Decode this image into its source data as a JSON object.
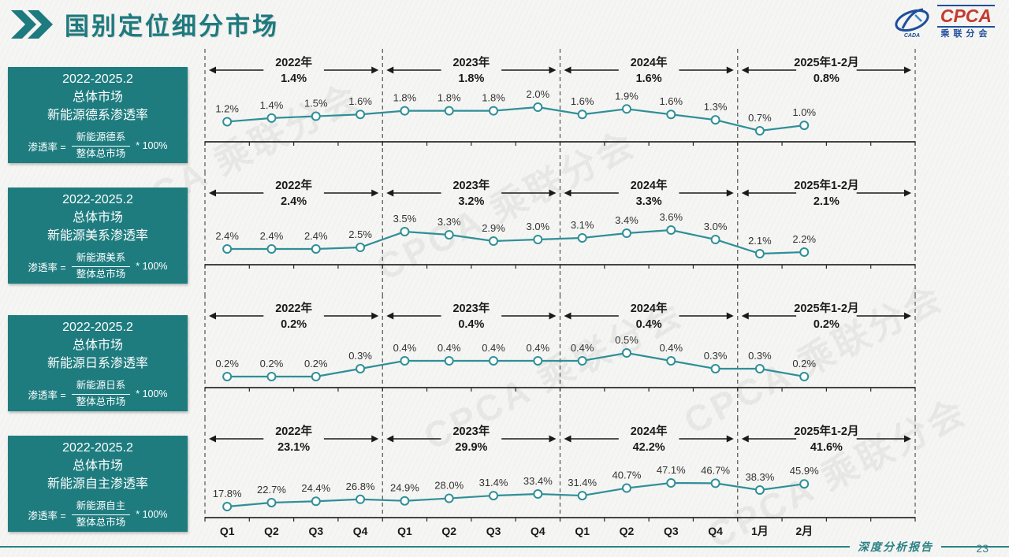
{
  "slide": {
    "title": "国别定位细分市场",
    "logo": {
      "cpca": "CPCA",
      "sub": "乘联分会",
      "cada": "CADA"
    },
    "watermark": "CPCA 乘联分会",
    "footer": {
      "report_label": "深度分析报告",
      "page_number": "23"
    }
  },
  "colors": {
    "panel_teal": "#1E7C7F",
    "title_teal": "#1D7A7E",
    "line": "#2F8F98",
    "footer_teal": "#2A8184",
    "logo_blue": "#1F4E9C",
    "logo_red": "#C43A2F",
    "ink": "#1A1A1A"
  },
  "formula": {
    "prefix": "渗透率 =",
    "multiplier": "* 100%",
    "denominator": "整体总市场"
  },
  "panels": [
    {
      "period": "2022-2025.2",
      "market": "总体市场",
      "metric": "新能源德系渗透率",
      "numerator": "新能源德系"
    },
    {
      "period": "2022-2025.2",
      "market": "总体市场",
      "metric": "新能源美系渗透率",
      "numerator": "新能源美系"
    },
    {
      "period": "2022-2025.2",
      "market": "总体市场",
      "metric": "新能源日系渗透率",
      "numerator": "新能源日系"
    },
    {
      "period": "2022-2025.2",
      "market": "总体市场",
      "metric": "新能源自主渗透率",
      "numerator": "新能源自主"
    }
  ],
  "chart_data": [
    {
      "type": "line",
      "title": "总体市场新能源德系渗透率",
      "categories": [
        "Q1",
        "Q2",
        "Q3",
        "Q4",
        "Q1",
        "Q2",
        "Q3",
        "Q4",
        "Q1",
        "Q2",
        "Q3",
        "Q4",
        "1月",
        "2月"
      ],
      "values": [
        1.2,
        1.4,
        1.5,
        1.6,
        1.8,
        1.8,
        1.8,
        2.0,
        1.6,
        1.9,
        1.6,
        1.3,
        0.7,
        1.0
      ],
      "labels": [
        "1.2%",
        "1.4%",
        "1.5%",
        "1.6%",
        "1.8%",
        "1.8%",
        "1.8%",
        "2.0%",
        "1.6%",
        "1.9%",
        "1.6%",
        "1.3%",
        "0.7%",
        "1.0%"
      ],
      "year_segments": [
        {
          "label": "2022年",
          "share": "1.4%"
        },
        {
          "label": "2023年",
          "share": "1.8%"
        },
        {
          "label": "2024年",
          "share": "1.6%"
        },
        {
          "label": "2025年1-2月",
          "share": "0.8%"
        }
      ],
      "legend": "none",
      "grid": "off",
      "ylabel": "",
      "xlabel": ""
    },
    {
      "type": "line",
      "title": "总体市场新能源美系渗透率",
      "categories": [
        "Q1",
        "Q2",
        "Q3",
        "Q4",
        "Q1",
        "Q2",
        "Q3",
        "Q4",
        "Q1",
        "Q2",
        "Q3",
        "Q4",
        "1月",
        "2月"
      ],
      "values": [
        2.4,
        2.4,
        2.4,
        2.5,
        3.5,
        3.3,
        2.9,
        3.0,
        3.1,
        3.4,
        3.6,
        3.0,
        2.1,
        2.2
      ],
      "labels": [
        "2.4%",
        "2.4%",
        "2.4%",
        "2.5%",
        "3.5%",
        "3.3%",
        "2.9%",
        "3.0%",
        "3.1%",
        "3.4%",
        "3.6%",
        "3.0%",
        "2.1%",
        "2.2%"
      ],
      "year_segments": [
        {
          "label": "2022年",
          "share": "2.4%"
        },
        {
          "label": "2023年",
          "share": "3.2%"
        },
        {
          "label": "2024年",
          "share": "3.3%"
        },
        {
          "label": "2025年1-2月",
          "share": "2.1%"
        }
      ],
      "legend": "none",
      "grid": "off",
      "ylabel": "",
      "xlabel": ""
    },
    {
      "type": "line",
      "title": "总体市场新能源日系渗透率",
      "categories": [
        "Q1",
        "Q2",
        "Q3",
        "Q4",
        "Q1",
        "Q2",
        "Q3",
        "Q4",
        "Q1",
        "Q2",
        "Q3",
        "Q4",
        "1月",
        "2月"
      ],
      "values": [
        0.2,
        0.2,
        0.2,
        0.3,
        0.4,
        0.4,
        0.4,
        0.4,
        0.4,
        0.5,
        0.4,
        0.3,
        0.3,
        0.2
      ],
      "labels": [
        "0.2%",
        "0.2%",
        "0.2%",
        "0.3%",
        "0.4%",
        "0.4%",
        "0.4%",
        "0.4%",
        "0.4%",
        "0.5%",
        "0.4%",
        "0.3%",
        "0.3%",
        "0.2%"
      ],
      "year_segments": [
        {
          "label": "2022年",
          "share": "0.2%"
        },
        {
          "label": "2023年",
          "share": "0.4%"
        },
        {
          "label": "2024年",
          "share": "0.4%"
        },
        {
          "label": "2025年1-2月",
          "share": "0.2%"
        }
      ],
      "legend": "none",
      "grid": "off",
      "ylabel": "",
      "xlabel": ""
    },
    {
      "type": "line",
      "title": "总体市场新能源自主渗透率",
      "categories": [
        "Q1",
        "Q2",
        "Q3",
        "Q4",
        "Q1",
        "Q2",
        "Q3",
        "Q4",
        "Q1",
        "Q2",
        "Q3",
        "Q4",
        "1月",
        "2月"
      ],
      "values": [
        17.8,
        22.7,
        24.4,
        26.8,
        24.9,
        28.0,
        31.4,
        33.4,
        31.4,
        40.7,
        47.1,
        46.7,
        38.3,
        45.9
      ],
      "labels": [
        "17.8%",
        "22.7%",
        "24.4%",
        "26.8%",
        "24.9%",
        "28.0%",
        "31.4%",
        "33.4%",
        "31.4%",
        "40.7%",
        "47.1%",
        "46.7%",
        "38.3%",
        "45.9%"
      ],
      "year_segments": [
        {
          "label": "2022年",
          "share": "23.1%"
        },
        {
          "label": "2023年",
          "share": "29.9%"
        },
        {
          "label": "2024年",
          "share": "42.2%"
        },
        {
          "label": "2025年1-2月",
          "share": "41.6%"
        }
      ],
      "legend": "none",
      "grid": "off",
      "ylabel": "",
      "xlabel": ""
    }
  ]
}
